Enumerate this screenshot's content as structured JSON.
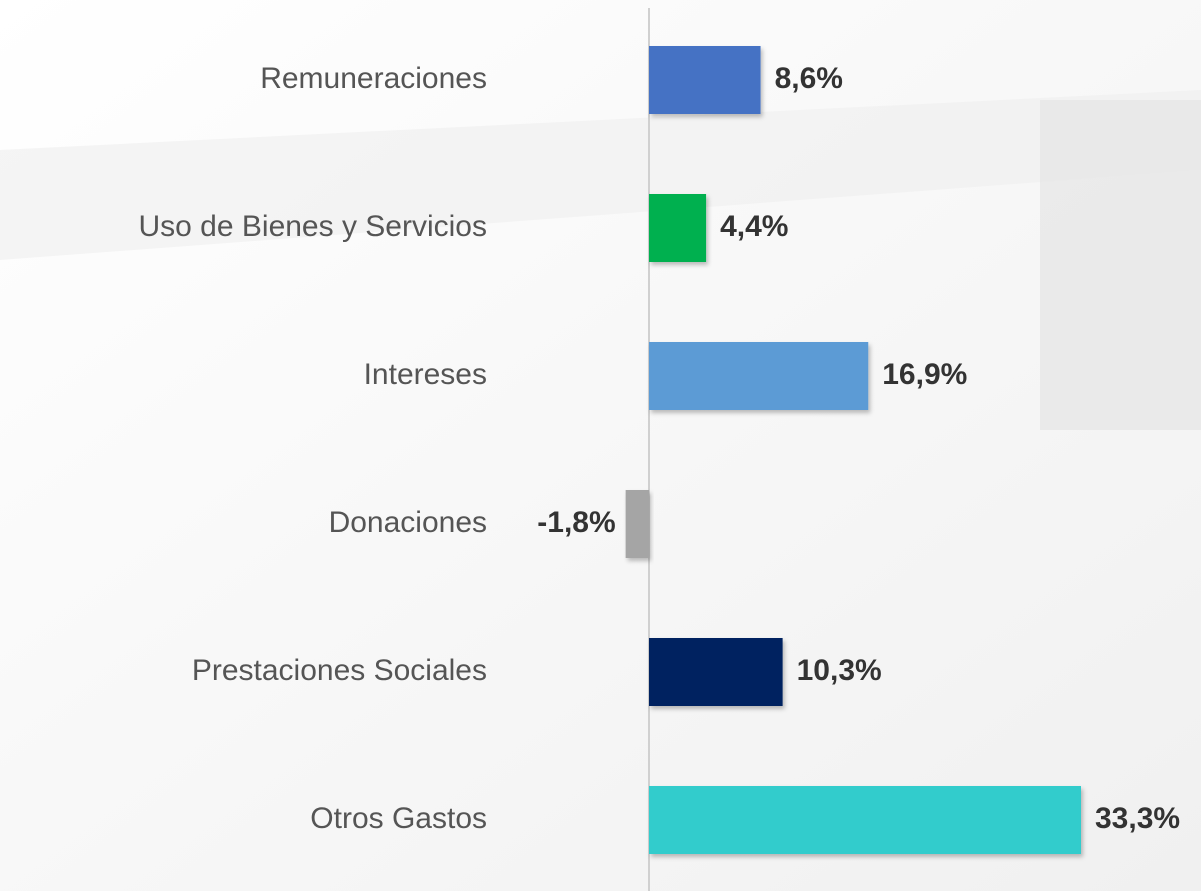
{
  "chart_data": {
    "type": "bar",
    "orientation": "horizontal",
    "categories": [
      "Remuneraciones",
      "Uso de Bienes y Servicios",
      "Intereses",
      "Donaciones",
      "Prestaciones Sociales",
      "Otros Gastos"
    ],
    "values": [
      8.6,
      4.4,
      16.9,
      -1.8,
      10.3,
      33.3
    ],
    "value_labels": [
      "8,6%",
      "4,4%",
      "16,9%",
      "-1,8%",
      "10,3%",
      "33,3%"
    ],
    "colors": [
      "#4472c4",
      "#00b050",
      "#5b9bd5",
      "#a5a5a5",
      "#002060",
      "#33cccc"
    ]
  }
}
